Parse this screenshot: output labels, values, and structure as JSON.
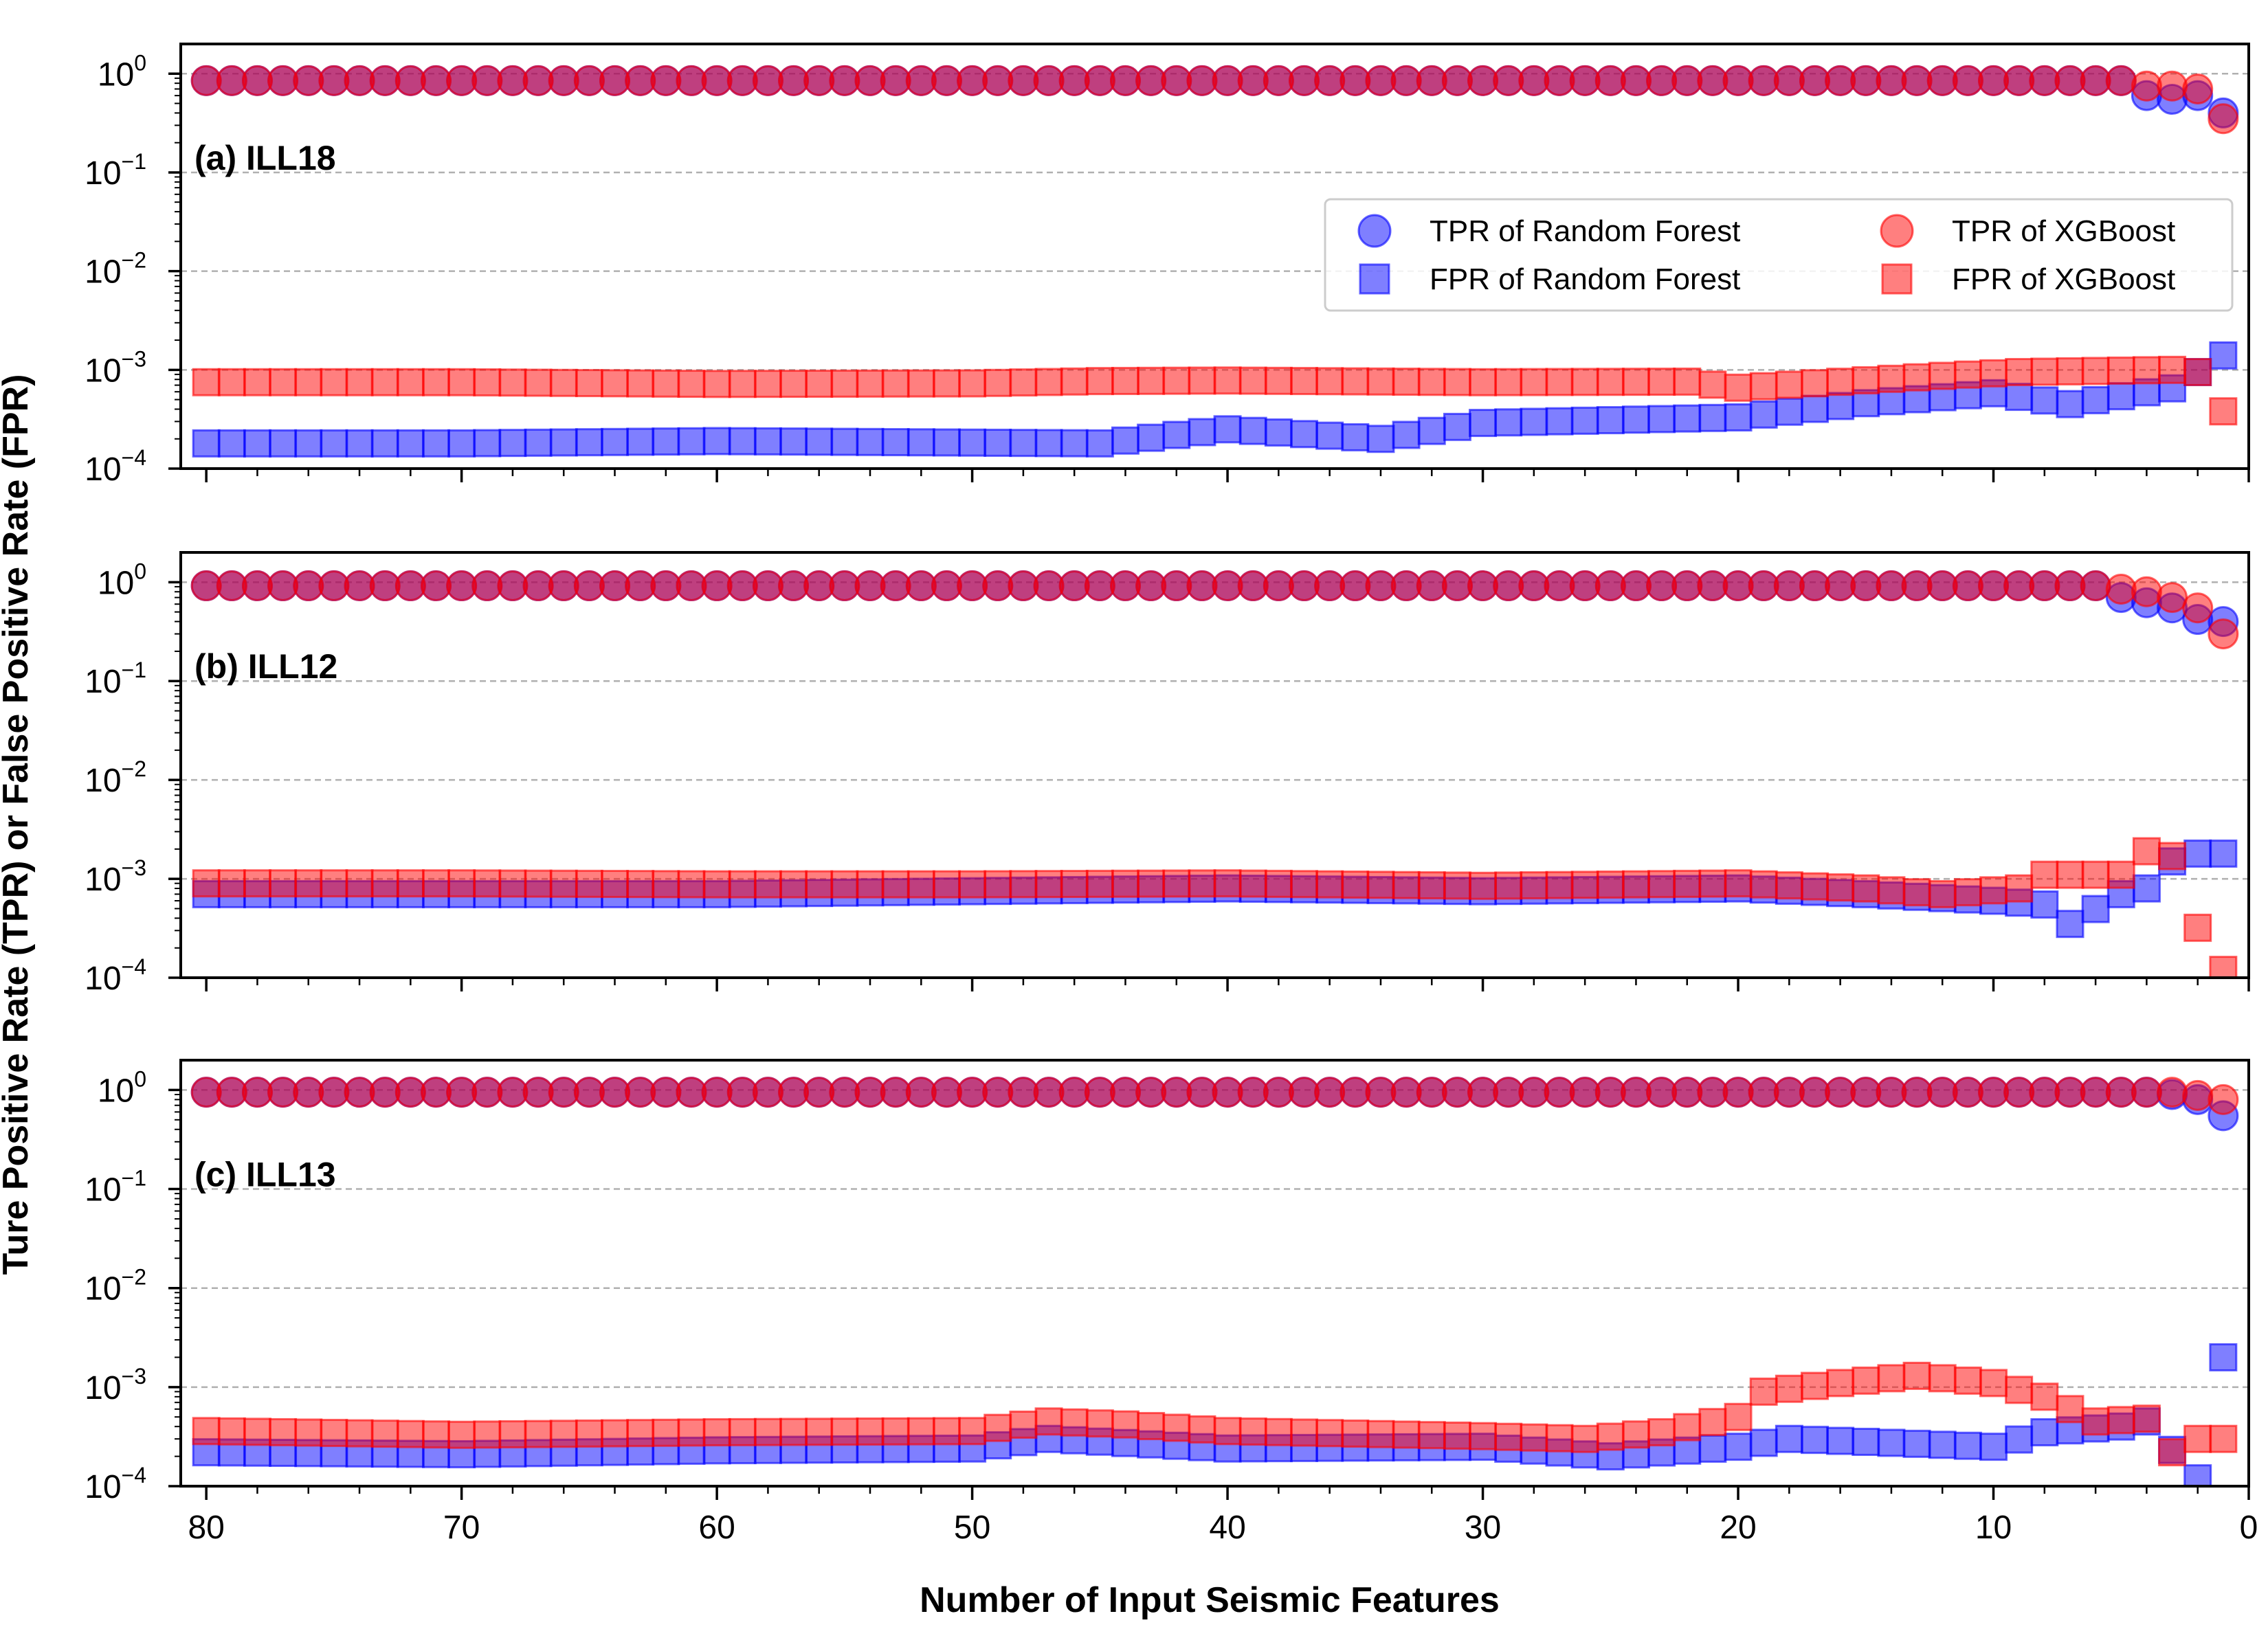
{
  "chart_data": {
    "type": "scatter",
    "xlabel": "Number of Input Seismic Features",
    "ylabel": "Ture Positive Rate (TPR) or False Positive Rate (FPR)",
    "x_range": [
      81,
      0
    ],
    "x_ticks": [
      "80",
      "70",
      "60",
      "50",
      "40",
      "30",
      "20",
      "10",
      "0"
    ],
    "y_scale": "log",
    "y_range": [
      0.0001,
      2
    ],
    "y_ticks": [
      {
        "base": "10",
        "exp": "0"
      },
      {
        "base": "10",
        "exp": "−1"
      },
      {
        "base": "10",
        "exp": "−2"
      },
      {
        "base": "10",
        "exp": "−3"
      },
      {
        "base": "10",
        "exp": "−4"
      }
    ],
    "grid": "horizontal dashed",
    "legend": {
      "placement": "upper-right of top panel",
      "entries": [
        {
          "label": "TPR of Random Forest",
          "marker": "circle",
          "color": "#0000ff"
        },
        {
          "label": "FPR of Random Forest",
          "marker": "square",
          "color": "#0000ff"
        },
        {
          "label": "TPR of XGBoost",
          "marker": "circle",
          "color": "#ff0000"
        },
        {
          "label": "FPR of XGBoost",
          "marker": "square",
          "color": "#ff0000"
        }
      ]
    },
    "colors": {
      "random_forest": "#0000ff",
      "xgboost": "#ff0000"
    },
    "features_x": "80 down to 1",
    "panels": [
      {
        "label": "(a) ILL18",
        "rf_tpr": {
          "flat": 0.85,
          "tail": [
            0.6,
            0.55,
            0.6,
            0.4
          ]
        },
        "xgb_tpr": {
          "flat": 0.85,
          "tail": [
            0.75,
            0.75,
            0.7,
            0.35
          ]
        },
        "rf_fpr": {
          "points": [
            [
              80,
              0.00018
            ],
            [
              70,
              0.00018
            ],
            [
              60,
              0.00019
            ],
            [
              45,
              0.00018
            ],
            [
              40,
              0.00025
            ],
            [
              34,
              0.0002
            ],
            [
              30,
              0.00029
            ],
            [
              20,
              0.00033
            ],
            [
              15,
              0.00046
            ],
            [
              10,
              0.00058
            ],
            [
              7,
              0.00045
            ],
            [
              3,
              0.00065
            ],
            [
              2,
              0.00095
            ],
            [
              1,
              0.0014
            ]
          ]
        },
        "xgb_fpr": {
          "points": [
            [
              80,
              0.00075
            ],
            [
              70,
              0.00075
            ],
            [
              60,
              0.00072
            ],
            [
              50,
              0.00073
            ],
            [
              45,
              0.00077
            ],
            [
              40,
              0.00078
            ],
            [
              30,
              0.00075
            ],
            [
              22,
              0.00076
            ],
            [
              20,
              0.00066
            ],
            [
              12,
              0.00087
            ],
            [
              9,
              0.00095
            ],
            [
              3,
              0.001
            ],
            [
              2,
              0.00095
            ],
            [
              1,
              0.00038
            ]
          ]
        }
      },
      {
        "label": "(b) ILL12",
        "rf_tpr": {
          "flat": 0.92,
          "tail": [
            0.7,
            0.62,
            0.55,
            0.42,
            0.4
          ]
        },
        "xgb_tpr": {
          "flat": 0.92,
          "tail": [
            0.85,
            0.8,
            0.7,
            0.55,
            0.3
          ]
        },
        "rf_fpr": {
          "points": [
            [
              80,
              0.0007
            ],
            [
              60,
              0.0007
            ],
            [
              50,
              0.00075
            ],
            [
              40,
              0.0008
            ],
            [
              30,
              0.00075
            ],
            [
              20,
              0.0008
            ],
            [
              15,
              0.0007
            ],
            [
              10,
              0.0006
            ],
            [
              8,
              0.00055
            ],
            [
              7,
              0.00035
            ],
            [
              5,
              0.0007
            ],
            [
              4,
              0.0008
            ],
            [
              3,
              0.0015
            ],
            [
              2,
              0.0018
            ]
          ]
        },
        "xgb_fpr": {
          "points": [
            [
              80,
              0.0009
            ],
            [
              70,
              0.0009
            ],
            [
              60,
              0.00088
            ],
            [
              50,
              0.00088
            ],
            [
              40,
              0.0009
            ],
            [
              30,
              0.00085
            ],
            [
              20,
              0.0009
            ],
            [
              15,
              0.0008
            ],
            [
              12,
              0.0007
            ],
            [
              9,
              0.0008
            ],
            [
              8,
              0.0011
            ],
            [
              5,
              0.0011
            ],
            [
              4,
              0.0019
            ],
            [
              3,
              0.0017
            ],
            [
              2,
              0.00032
            ],
            [
              1,
              0.00012
            ]
          ]
        }
      },
      {
        "label": "(c) ILL13",
        "rf_tpr": {
          "flat": 0.95,
          "tail": [
            0.9,
            0.8,
            0.55
          ]
        },
        "xgb_tpr": {
          "flat": 0.95,
          "tail": [
            0.95,
            0.88,
            0.8
          ]
        },
        "rf_fpr": {
          "points": [
            [
              80,
              0.00022
            ],
            [
              70,
              0.00021
            ],
            [
              60,
              0.00023
            ],
            [
              50,
              0.00024
            ],
            [
              47,
              0.0003
            ],
            [
              40,
              0.00024
            ],
            [
              30,
              0.00025
            ],
            [
              25,
              0.0002
            ],
            [
              20,
              0.00025
            ],
            [
              18,
              0.0003
            ],
            [
              10,
              0.00025
            ],
            [
              8,
              0.00035
            ],
            [
              5,
              0.0004
            ],
            [
              4,
              0.00045
            ],
            [
              2,
              0.00012
            ],
            [
              1,
              0.002
            ]
          ]
        },
        "xgb_fpr": {
          "points": [
            [
              80,
              0.00036
            ],
            [
              70,
              0.00033
            ],
            [
              60,
              0.00035
            ],
            [
              50,
              0.00036
            ],
            [
              47,
              0.00045
            ],
            [
              44,
              0.00042
            ],
            [
              40,
              0.00036
            ],
            [
              30,
              0.00032
            ],
            [
              26,
              0.0003
            ],
            [
              23,
              0.00035
            ],
            [
              20,
              0.0005
            ],
            [
              19,
              0.0009
            ],
            [
              16,
              0.0011
            ],
            [
              13,
              0.0013
            ],
            [
              10,
              0.0011
            ],
            [
              8,
              0.0008
            ],
            [
              6,
              0.00045
            ],
            [
              4,
              0.00048
            ],
            [
              3,
              0.00022
            ],
            [
              2,
              0.0003
            ]
          ]
        }
      }
    ]
  }
}
